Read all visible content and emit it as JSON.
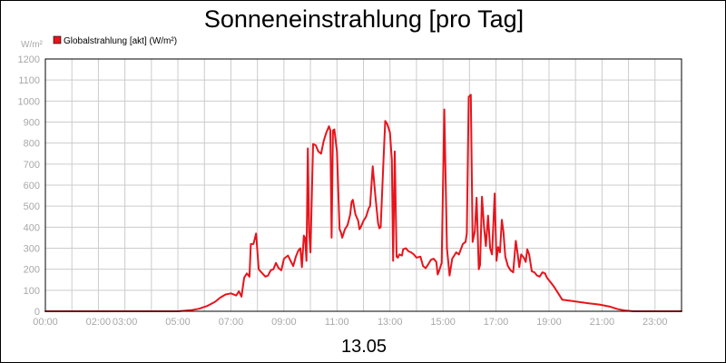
{
  "chart_data": {
    "type": "line",
    "title": "Sonneneinstrahlung [pro Tag]",
    "yunit": "W/m²",
    "date_label": "13.05",
    "ylim": [
      0,
      1200
    ],
    "yticks": [
      0,
      100,
      200,
      300,
      400,
      500,
      600,
      700,
      800,
      900,
      1000,
      1100,
      1200
    ],
    "xlim": [
      0,
      24
    ],
    "xticks": [
      {
        "value": 0,
        "label": "00:00"
      },
      {
        "value": 2,
        "label": "02:00"
      },
      {
        "value": 3,
        "label": "03:00"
      },
      {
        "value": 5,
        "label": "05:00"
      },
      {
        "value": 7,
        "label": "07:00"
      },
      {
        "value": 9,
        "label": "09:00"
      },
      {
        "value": 11,
        "label": "11:00"
      },
      {
        "value": 13,
        "label": "13:00"
      },
      {
        "value": 15,
        "label": "15:00"
      },
      {
        "value": 17,
        "label": "17:00"
      },
      {
        "value": 19,
        "label": "19:00"
      },
      {
        "value": 21,
        "label": "21:00"
      },
      {
        "value": 23,
        "label": "23:00"
      }
    ],
    "grid": true,
    "legend_position": "top-left",
    "series": [
      {
        "name": "Globalstrahlung [akt] (W/m²)",
        "color": "#e8141c",
        "points": [
          [
            0.0,
            0
          ],
          [
            5.0,
            0
          ],
          [
            5.5,
            5
          ],
          [
            5.8,
            12
          ],
          [
            6.1,
            25
          ],
          [
            6.4,
            45
          ],
          [
            6.6,
            65
          ],
          [
            6.8,
            80
          ],
          [
            7.0,
            85
          ],
          [
            7.2,
            75
          ],
          [
            7.3,
            95
          ],
          [
            7.4,
            70
          ],
          [
            7.5,
            160
          ],
          [
            7.6,
            180
          ],
          [
            7.7,
            165
          ],
          [
            7.75,
            320
          ],
          [
            7.85,
            320
          ],
          [
            7.95,
            370
          ],
          [
            8.05,
            200
          ],
          [
            8.15,
            185
          ],
          [
            8.3,
            165
          ],
          [
            8.4,
            170
          ],
          [
            8.5,
            195
          ],
          [
            8.6,
            200
          ],
          [
            8.7,
            230
          ],
          [
            8.8,
            205
          ],
          [
            8.9,
            195
          ],
          [
            9.0,
            250
          ],
          [
            9.15,
            265
          ],
          [
            9.25,
            240
          ],
          [
            9.35,
            215
          ],
          [
            9.45,
            260
          ],
          [
            9.55,
            290
          ],
          [
            9.62,
            300
          ],
          [
            9.68,
            210
          ],
          [
            9.75,
            360
          ],
          [
            9.8,
            350
          ],
          [
            9.85,
            240
          ],
          [
            9.9,
            775
          ],
          [
            9.95,
            380
          ],
          [
            10.0,
            280
          ],
          [
            10.1,
            795
          ],
          [
            10.2,
            790
          ],
          [
            10.3,
            760
          ],
          [
            10.4,
            750
          ],
          [
            10.5,
            810
          ],
          [
            10.6,
            850
          ],
          [
            10.7,
            880
          ],
          [
            10.75,
            860
          ],
          [
            10.8,
            350
          ],
          [
            10.85,
            860
          ],
          [
            10.9,
            865
          ],
          [
            11.0,
            760
          ],
          [
            11.1,
            390
          ],
          [
            11.15,
            375
          ],
          [
            11.2,
            350
          ],
          [
            11.3,
            390
          ],
          [
            11.4,
            410
          ],
          [
            11.5,
            460
          ],
          [
            11.55,
            520
          ],
          [
            11.6,
            530
          ],
          [
            11.7,
            460
          ],
          [
            11.8,
            430
          ],
          [
            11.85,
            390
          ],
          [
            11.9,
            400
          ],
          [
            12.0,
            430
          ],
          [
            12.1,
            450
          ],
          [
            12.2,
            490
          ],
          [
            12.25,
            500
          ],
          [
            12.35,
            690
          ],
          [
            12.45,
            550
          ],
          [
            12.55,
            420
          ],
          [
            12.6,
            395
          ],
          [
            12.65,
            400
          ],
          [
            12.75,
            700
          ],
          [
            12.82,
            905
          ],
          [
            12.9,
            890
          ],
          [
            13.0,
            850
          ],
          [
            13.07,
            720
          ],
          [
            13.12,
            240
          ],
          [
            13.18,
            760
          ],
          [
            13.25,
            260
          ],
          [
            13.3,
            255
          ],
          [
            13.35,
            270
          ],
          [
            13.45,
            265
          ],
          [
            13.5,
            295
          ],
          [
            13.6,
            300
          ],
          [
            13.7,
            285
          ],
          [
            13.8,
            280
          ],
          [
            13.9,
            270
          ],
          [
            14.0,
            255
          ],
          [
            14.15,
            260
          ],
          [
            14.25,
            215
          ],
          [
            14.35,
            205
          ],
          [
            14.45,
            225
          ],
          [
            14.55,
            245
          ],
          [
            14.65,
            250
          ],
          [
            14.75,
            235
          ],
          [
            14.8,
            175
          ],
          [
            14.85,
            190
          ],
          [
            14.95,
            230
          ],
          [
            15.05,
            960
          ],
          [
            15.15,
            300
          ],
          [
            15.25,
            170
          ],
          [
            15.35,
            250
          ],
          [
            15.5,
            280
          ],
          [
            15.6,
            270
          ],
          [
            15.75,
            320
          ],
          [
            15.85,
            330
          ],
          [
            15.9,
            370
          ],
          [
            15.97,
            1020
          ],
          [
            16.05,
            1030
          ],
          [
            16.12,
            330
          ],
          [
            16.2,
            380
          ],
          [
            16.27,
            540
          ],
          [
            16.35,
            200
          ],
          [
            16.4,
            220
          ],
          [
            16.47,
            545
          ],
          [
            16.55,
            400
          ],
          [
            16.62,
            310
          ],
          [
            16.7,
            455
          ],
          [
            16.78,
            300
          ],
          [
            16.85,
            270
          ],
          [
            16.95,
            560
          ],
          [
            17.02,
            240
          ],
          [
            17.08,
            305
          ],
          [
            17.15,
            280
          ],
          [
            17.22,
            435
          ],
          [
            17.28,
            380
          ],
          [
            17.35,
            260
          ],
          [
            17.45,
            215
          ],
          [
            17.55,
            195
          ],
          [
            17.65,
            185
          ],
          [
            17.75,
            335
          ],
          [
            17.82,
            270
          ],
          [
            17.88,
            210
          ],
          [
            17.95,
            270
          ],
          [
            18.05,
            255
          ],
          [
            18.12,
            235
          ],
          [
            18.18,
            295
          ],
          [
            18.25,
            270
          ],
          [
            18.35,
            190
          ],
          [
            18.45,
            185
          ],
          [
            18.55,
            170
          ],
          [
            18.65,
            165
          ],
          [
            18.75,
            185
          ],
          [
            18.85,
            180
          ],
          [
            18.92,
            160
          ],
          [
            19.05,
            140
          ],
          [
            19.2,
            115
          ],
          [
            19.35,
            85
          ],
          [
            19.5,
            55
          ],
          [
            19.8,
            50
          ],
          [
            20.1,
            45
          ],
          [
            20.5,
            38
          ],
          [
            20.9,
            32
          ],
          [
            21.3,
            22
          ],
          [
            21.6,
            10
          ],
          [
            21.9,
            3
          ],
          [
            22.2,
            0
          ],
          [
            24.0,
            0
          ]
        ]
      }
    ]
  }
}
